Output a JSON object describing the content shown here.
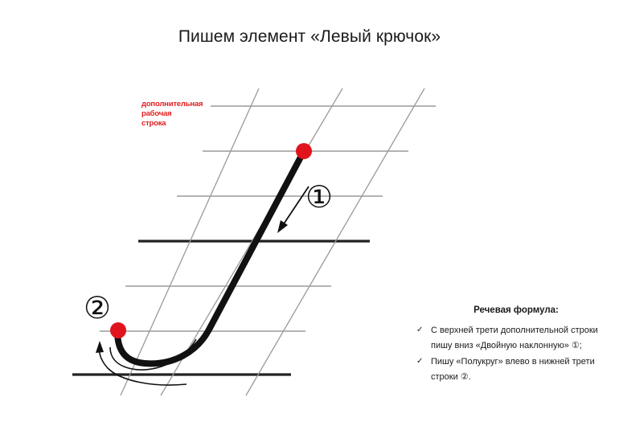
{
  "title": "Пишем элемент «Левый крючок»",
  "extra_line_label": [
    "дополнительная",
    "рабочая",
    "строка"
  ],
  "step_markers": [
    "①",
    "②"
  ],
  "speech_formula": {
    "title": "Речевая формула:",
    "items": [
      "С верхней трети дополнительной строки пишу вниз «Двойную наклонную» ①;",
      "Пишу «Полукруг» влево в нижней трети строки ②."
    ]
  },
  "colors": {
    "grid": "#9a9a9a",
    "baseline": "#222222",
    "stroke": "#111111",
    "start_dot": "#e0141c",
    "label": "#e21d1d"
  },
  "icons": [
    "checkmark-icon",
    "down-arrow-icon",
    "curved-arrow-icon"
  ]
}
